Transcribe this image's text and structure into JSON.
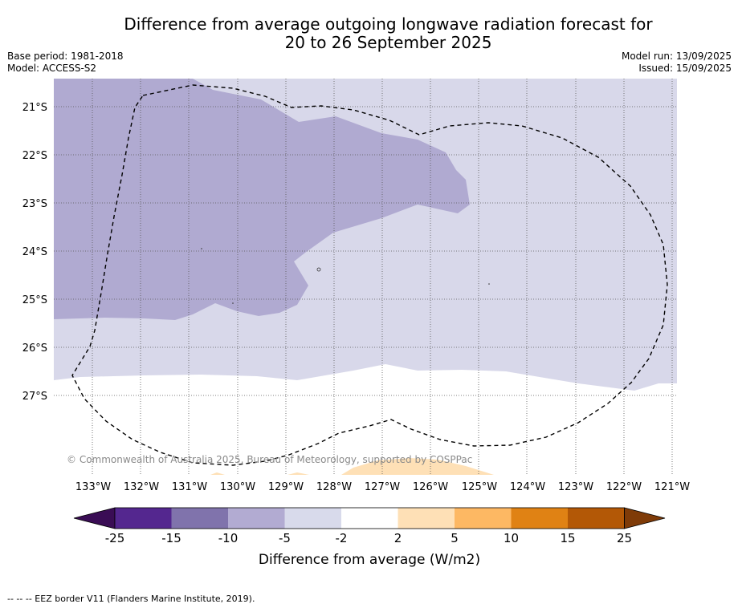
{
  "title": {
    "line1": "Difference from average outgoing longwave radiation forecast for",
    "line2": "20 to 26 September 2025"
  },
  "meta_left": {
    "base_period": "Base period: 1981-2018",
    "model": "Model: ACCESS-S2"
  },
  "meta_right": {
    "model_run": "Model run: 13/09/2025",
    "issued": "Issued: 15/09/2025"
  },
  "map": {
    "lat_labels": [
      "21°S",
      "22°S",
      "23°S",
      "24°S",
      "25°S",
      "26°S",
      "27°S"
    ],
    "lon_labels": [
      "133°W",
      "132°W",
      "131°W",
      "130°W",
      "129°W",
      "128°W",
      "127°W",
      "126°W",
      "125°W",
      "124°W",
      "123°W",
      "122°W",
      "121°W"
    ],
    "copyright": "© Commonwealth of Australia 2025, Bureau of Meteorology, supported by COSPPac",
    "eez_style": "dashed",
    "colors": {
      "band_-10_-5": "#b0aad1",
      "band_-5_-2": "#d8d8ea",
      "band_-2_2": "#ffffff",
      "band_2_5": "#fee0b6"
    }
  },
  "colorbar": {
    "ticks": [
      "-25",
      "-15",
      "-10",
      "-5",
      "-2",
      "2",
      "5",
      "10",
      "15",
      "25"
    ],
    "label": "Difference from average (W/m2)",
    "colors": [
      "#3a0d55",
      "#54278f",
      "#8073ac",
      "#b2abd2",
      "#d8daeb",
      "#ffffff",
      "#fee0b6",
      "#fdb863",
      "#e08214",
      "#b35806",
      "#7f3b08"
    ]
  },
  "footnote": "--  --  -- EEZ border V11 (Flanders Marine Institute, 2019)."
}
